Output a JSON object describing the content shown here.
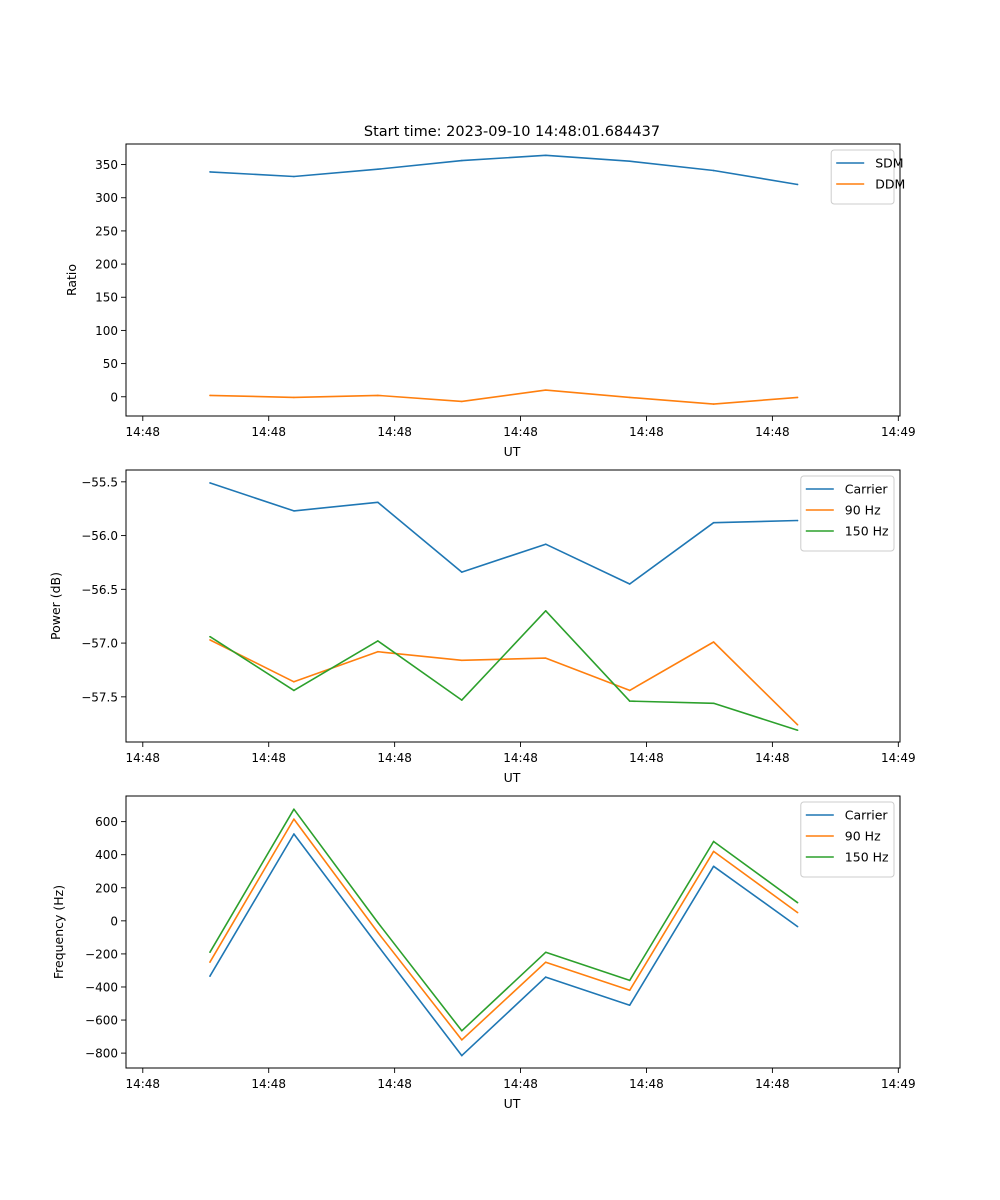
{
  "figure_title": "Start time: 2023-09-10 14:48:01.684437",
  "colors": {
    "blue": "#1f77b4",
    "orange": "#ff7f0e",
    "green": "#2ca02c"
  },
  "chart_data": [
    {
      "type": "line",
      "title": "Start time: 2023-09-10 14:48:01.684437",
      "xlabel": "UT",
      "ylabel": "Ratio",
      "x": [
        1,
        2,
        3,
        4,
        5,
        6,
        7,
        8
      ],
      "xlim": [
        0,
        9.22
      ],
      "xticks": [
        0.2,
        1.7,
        3.2,
        4.7,
        6.2,
        7.7,
        9.2
      ],
      "xticklabels": [
        "14:48",
        "14:48",
        "14:48",
        "14:48",
        "14:48",
        "14:48",
        "14:49"
      ],
      "ylim": [
        -29,
        381
      ],
      "yticks": [
        0,
        50,
        100,
        150,
        200,
        250,
        300,
        350
      ],
      "yticklabels": [
        "0",
        "50",
        "100",
        "150",
        "200",
        "250",
        "300",
        "350"
      ],
      "legend": "top-right",
      "series": [
        {
          "name": "SDM",
          "color": "#1f77b4",
          "values": [
            339,
            332,
            343,
            356,
            364,
            355,
            341,
            320
          ]
        },
        {
          "name": "DDM",
          "color": "#ff7f0e",
          "values": [
            2,
            -1,
            2,
            -7,
            10,
            -1,
            -11,
            -1
          ]
        }
      ]
    },
    {
      "type": "line",
      "title": "",
      "xlabel": "UT",
      "ylabel": "Power (dB)",
      "x": [
        1,
        2,
        3,
        4,
        5,
        6,
        7,
        8
      ],
      "xlim": [
        0,
        9.22
      ],
      "xticks": [
        0.2,
        1.7,
        3.2,
        4.7,
        6.2,
        7.7,
        9.2
      ],
      "xticklabels": [
        "14:48",
        "14:48",
        "14:48",
        "14:48",
        "14:48",
        "14:48",
        "14:49"
      ],
      "ylim": [
        -57.92,
        -55.39
      ],
      "yticks": [
        -57.5,
        -57.0,
        -56.5,
        -56.0,
        -55.5
      ],
      "yticklabels": [
        "−57.5",
        "−57.0",
        "−56.5",
        "−56.0",
        "−55.5"
      ],
      "legend": "top-right",
      "series": [
        {
          "name": "Carrier",
          "color": "#1f77b4",
          "values": [
            -55.51,
            -55.77,
            -55.69,
            -56.34,
            -56.08,
            -56.45,
            -55.88,
            -55.86
          ]
        },
        {
          "name": "90 Hz",
          "color": "#ff7f0e",
          "values": [
            -56.97,
            -57.36,
            -57.08,
            -57.16,
            -57.14,
            -57.44,
            -56.99,
            -57.76
          ]
        },
        {
          "name": "150 Hz",
          "color": "#2ca02c",
          "values": [
            -56.94,
            -57.44,
            -56.98,
            -57.53,
            -56.7,
            -57.54,
            -57.56,
            -57.81
          ]
        }
      ]
    },
    {
      "type": "line",
      "title": "",
      "xlabel": "UT",
      "ylabel": "Frequency (Hz)",
      "x": [
        1,
        2,
        3,
        4,
        5,
        6,
        7,
        8
      ],
      "xlim": [
        0,
        9.22
      ],
      "xticks": [
        0.2,
        1.7,
        3.2,
        4.7,
        6.2,
        7.7,
        9.2
      ],
      "xticklabels": [
        "14:48",
        "14:48",
        "14:48",
        "14:48",
        "14:48",
        "14:48",
        "14:49"
      ],
      "ylim": [
        -890,
        755
      ],
      "yticks": [
        -800,
        -600,
        -400,
        -200,
        0,
        200,
        400,
        600
      ],
      "yticklabels": [
        "−800",
        "−600",
        "−400",
        "−200",
        "0",
        "200",
        "400",
        "600"
      ],
      "legend": "top-right",
      "series": [
        {
          "name": "Carrier",
          "color": "#1f77b4",
          "values": [
            -335,
            525,
            -150,
            -815,
            -340,
            -510,
            330,
            -35
          ]
        },
        {
          "name": "90 Hz",
          "color": "#ff7f0e",
          "values": [
            -250,
            615,
            -70,
            -720,
            -250,
            -420,
            420,
            50
          ]
        },
        {
          "name": "150 Hz",
          "color": "#2ca02c",
          "values": [
            -190,
            675,
            -10,
            -665,
            -190,
            -360,
            480,
            110
          ]
        }
      ]
    }
  ]
}
